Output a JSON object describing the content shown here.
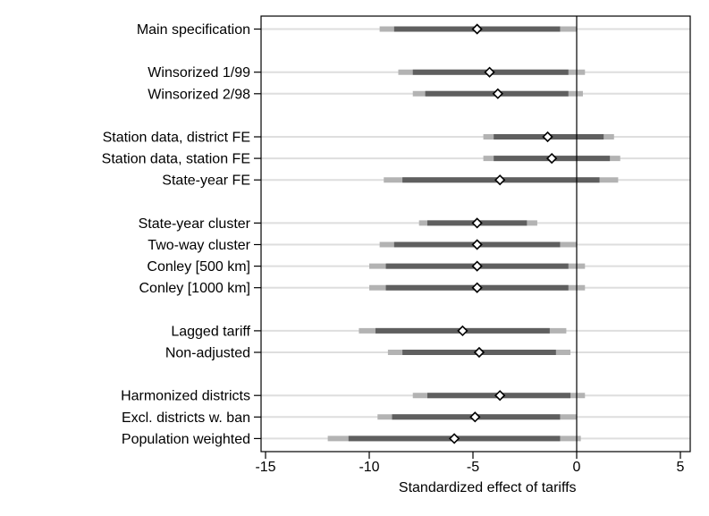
{
  "chart_data": {
    "type": "coefficient_plot",
    "title": "",
    "xlabel": "Standardized effect of tariffs",
    "xlim": [
      -15,
      5
    ],
    "xticks": [
      -15,
      -10,
      -5,
      0,
      5
    ],
    "reference_line_x": 0,
    "grid": "horizontal",
    "colors": {
      "ci_outer": "#b3b3b3",
      "ci_inner": "#5f5f5f",
      "grid": "#dedede",
      "marker_fill": "#ffffff",
      "marker_edge": "#000000"
    },
    "rows": [
      {
        "label": "Main specification",
        "estimate": -4.8,
        "ci90": [
          -8.8,
          -0.8
        ],
        "ci95": [
          -9.5,
          0.0
        ]
      },
      {
        "label": "Winsorized 1/99",
        "estimate": -4.2,
        "ci90": [
          -7.9,
          -0.4
        ],
        "ci95": [
          -8.6,
          0.4
        ]
      },
      {
        "label": "Winsorized 2/98",
        "estimate": -3.8,
        "ci90": [
          -7.3,
          -0.4
        ],
        "ci95": [
          -7.9,
          0.3
        ]
      },
      {
        "label": "Station data, district FE",
        "estimate": -1.4,
        "ci90": [
          -4.0,
          1.3
        ],
        "ci95": [
          -4.5,
          1.8
        ]
      },
      {
        "label": "Station data, station FE",
        "estimate": -1.2,
        "ci90": [
          -4.0,
          1.6
        ],
        "ci95": [
          -4.5,
          2.1
        ]
      },
      {
        "label": "State-year FE",
        "estimate": -3.7,
        "ci90": [
          -8.4,
          1.1
        ],
        "ci95": [
          -9.3,
          2.0
        ]
      },
      {
        "label": "State-year cluster",
        "estimate": -4.8,
        "ci90": [
          -7.2,
          -2.4
        ],
        "ci95": [
          -7.6,
          -1.9
        ]
      },
      {
        "label": "Two-way cluster",
        "estimate": -4.8,
        "ci90": [
          -8.8,
          -0.8
        ],
        "ci95": [
          -9.5,
          0.0
        ]
      },
      {
        "label": "Conley [500 km]",
        "estimate": -4.8,
        "ci90": [
          -9.2,
          -0.4
        ],
        "ci95": [
          -10.0,
          0.4
        ]
      },
      {
        "label": "Conley [1000 km]",
        "estimate": -4.8,
        "ci90": [
          -9.2,
          -0.4
        ],
        "ci95": [
          -10.0,
          0.4
        ]
      },
      {
        "label": "Lagged tariff",
        "estimate": -5.5,
        "ci90": [
          -9.7,
          -1.3
        ],
        "ci95": [
          -10.5,
          -0.5
        ]
      },
      {
        "label": "Non-adjusted",
        "estimate": -4.7,
        "ci90": [
          -8.4,
          -1.0
        ],
        "ci95": [
          -9.1,
          -0.3
        ]
      },
      {
        "label": "Harmonized districts",
        "estimate": -3.7,
        "ci90": [
          -7.2,
          -0.3
        ],
        "ci95": [
          -7.9,
          0.4
        ]
      },
      {
        "label": "Excl. districts w. ban",
        "estimate": -4.9,
        "ci90": [
          -8.9,
          -0.8
        ],
        "ci95": [
          -9.6,
          0.0
        ]
      },
      {
        "label": "Population weighted",
        "estimate": -5.9,
        "ci90": [
          -11.0,
          -0.8
        ],
        "ci95": [
          -12.0,
          0.2
        ]
      }
    ]
  }
}
